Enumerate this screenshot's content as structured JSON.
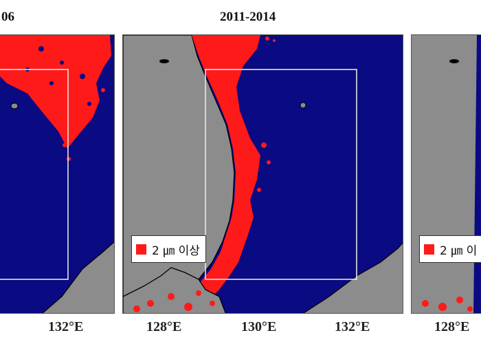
{
  "panels": [
    {
      "title": "06",
      "ticks": [
        "132°E"
      ]
    },
    {
      "title": "2011-2014",
      "ticks": [
        "128°E",
        "130°E",
        "132°E"
      ],
      "legend": "2 ㎛ 이상"
    },
    {
      "title": "",
      "ticks": [
        "128°E"
      ],
      "legend": "2 ㎛ 이"
    }
  ],
  "colors": {
    "sea": "#0a0a82",
    "land": "#8c8c8c",
    "coastline": "#000000",
    "shallow": "#ff1a1a",
    "box": "#e6e6e6"
  }
}
